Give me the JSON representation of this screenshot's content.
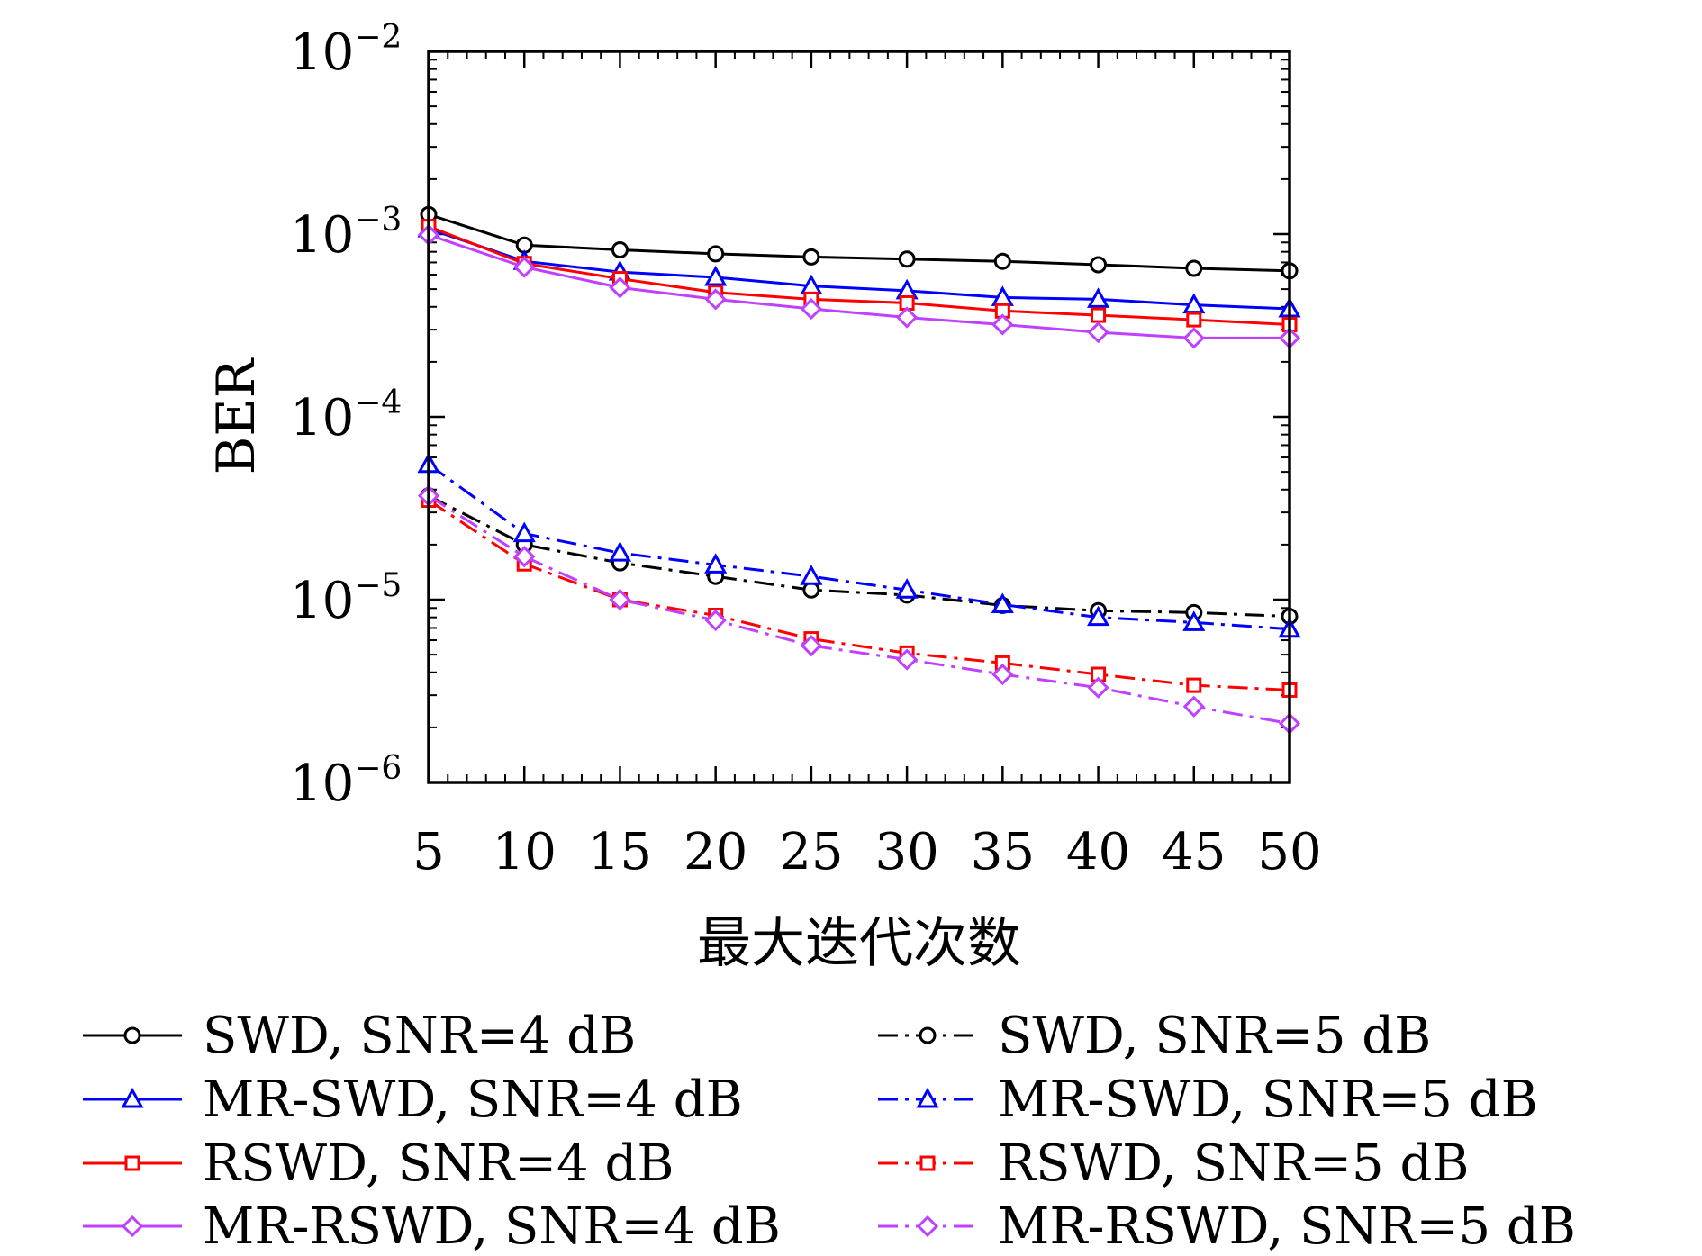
{
  "chart_data": {
    "type": "line",
    "title": "",
    "xlabel": "最大迭代次数",
    "ylabel": "BER",
    "y_scale": "log",
    "xlim": [
      5,
      50
    ],
    "ylim": [
      1e-06,
      0.01
    ],
    "x": [
      5,
      10,
      15,
      20,
      25,
      30,
      35,
      40,
      45,
      50
    ],
    "x_tick_labels": [
      "5",
      "10",
      "15",
      "20",
      "25",
      "30",
      "35",
      "40",
      "45",
      "50"
    ],
    "y_tick_labels": [
      {
        "base": "10",
        "exp": "−2"
      },
      {
        "base": "10",
        "exp": "−3"
      },
      {
        "base": "10",
        "exp": "−4"
      },
      {
        "base": "10",
        "exp": "−5"
      },
      {
        "base": "10",
        "exp": "−6"
      }
    ],
    "grid": false,
    "legend_position": "below the plot, two columns",
    "series": [
      {
        "name": "SWD, SNR=4 dB",
        "color": "#000000",
        "marker": "circle",
        "line": "solid",
        "values": [
          0.00128,
          0.00087,
          0.00082,
          0.00078,
          0.00075,
          0.00073,
          0.00071,
          0.00068,
          0.00065,
          0.00063
        ]
      },
      {
        "name": "MR-SWD, SNR=4 dB",
        "color": "#0000ff",
        "marker": "triangle",
        "line": "solid",
        "values": [
          0.00107,
          0.00071,
          0.00062,
          0.00058,
          0.00052,
          0.00049,
          0.00045,
          0.00044,
          0.00041,
          0.00039
        ]
      },
      {
        "name": "RSWD, SNR=4 dB",
        "color": "#ff0000",
        "marker": "square",
        "line": "solid",
        "values": [
          0.0011,
          0.00069,
          0.00057,
          0.00048,
          0.00044,
          0.00042,
          0.00038,
          0.00036,
          0.00034,
          0.00032
        ]
      },
      {
        "name": "MR-RSWD, SNR=4 dB",
        "color": "#c040ff",
        "marker": "diamond",
        "line": "solid",
        "values": [
          0.00099,
          0.00066,
          0.00051,
          0.00044,
          0.00039,
          0.00035,
          0.00032,
          0.00029,
          0.00027,
          0.00027
        ]
      },
      {
        "name": "SWD, SNR=5 dB",
        "color": "#000000",
        "marker": "circle",
        "line": "dashdot",
        "values": [
          3.7e-05,
          2e-05,
          1.59e-05,
          1.34e-05,
          1.13e-05,
          1.06e-05,
          9.3e-06,
          8.7e-06,
          8.5e-06,
          8.1e-06
        ]
      },
      {
        "name": "MR-SWD, SNR=5 dB",
        "color": "#0000ff",
        "marker": "triangle",
        "line": "dashdot",
        "values": [
          5.5e-05,
          2.3e-05,
          1.8e-05,
          1.55e-05,
          1.34e-05,
          1.13e-05,
          9.4e-06,
          8e-06,
          7.5e-06,
          6.9e-06
        ]
      },
      {
        "name": "RSWD, SNR=5 dB",
        "color": "#ff0000",
        "marker": "square",
        "line": "dashdot",
        "values": [
          3.5e-05,
          1.57e-05,
          1e-05,
          8.2e-06,
          6.1e-06,
          5.1e-06,
          4.5e-06,
          3.9e-06,
          3.4e-06,
          3.2e-06
        ]
      },
      {
        "name": "MR-RSWD, SNR=5 dB",
        "color": "#c040ff",
        "marker": "diamond",
        "line": "dashdot",
        "values": [
          3.7e-05,
          1.72e-05,
          1e-05,
          7.7e-06,
          5.6e-06,
          4.7e-06,
          3.9e-06,
          3.3e-06,
          2.6e-06,
          2.1e-06
        ]
      }
    ]
  }
}
